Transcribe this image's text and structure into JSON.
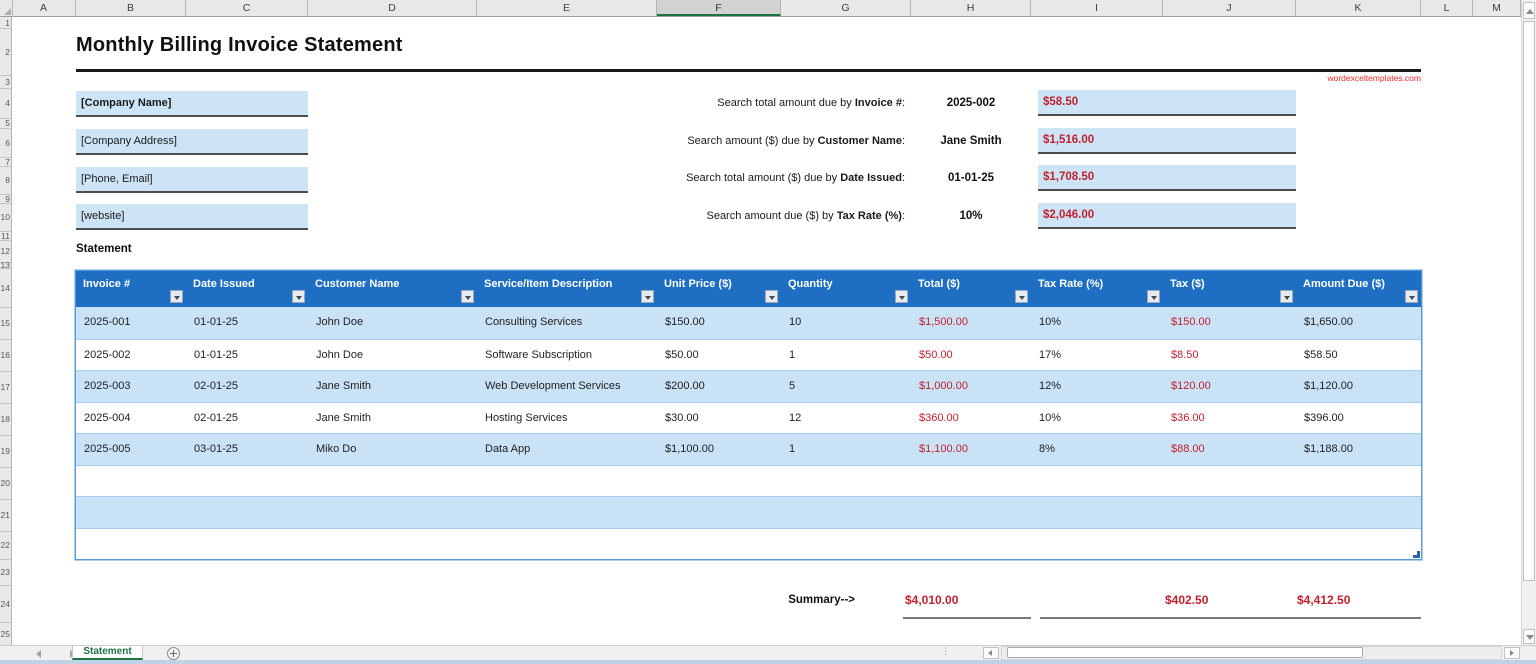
{
  "spreadsheet": {
    "column_headers": [
      "A",
      "B",
      "C",
      "D",
      "E",
      "F",
      "G",
      "H",
      "I",
      "J",
      "K",
      "L",
      "M"
    ],
    "selected_column": "F",
    "row_numbers": [
      "1",
      "2",
      "3",
      "4",
      "5",
      "6",
      "7",
      "8",
      "9",
      "10",
      "11",
      "12",
      "13",
      "14",
      "15",
      "16",
      "17",
      "18",
      "19",
      "20",
      "21",
      "22",
      "23",
      "24",
      "25"
    ]
  },
  "document": {
    "title": "Monthly Billing Invoice Statement",
    "watermark": "wordexceltemplates.com",
    "company_fields": {
      "name": "[Company Name]",
      "address": "[Company Address]",
      "phone_email": "[Phone, Email]",
      "website": "[website]"
    },
    "search": [
      {
        "prefix": "Search total amount due by ",
        "key": "Invoice #",
        "suffix": ":",
        "value": "2025-002",
        "result": "$58.50"
      },
      {
        "prefix": "Search amount ($) due by ",
        "key": "Customer Name",
        "suffix": ":",
        "value": "Jane Smith",
        "result": "$1,516.00"
      },
      {
        "prefix": "Search total amount ($) due by ",
        "key": "Date Issued",
        "suffix": ":",
        "value": "01-01-25",
        "result": "$1,708.50"
      },
      {
        "prefix": "Search amount due ($) by ",
        "key": "Tax Rate (%)",
        "suffix": ":",
        "value": "10%",
        "result": "$2,046.00"
      }
    ],
    "section_label": "Statement",
    "table": {
      "headers": [
        "Invoice #",
        "Date Issued",
        "Customer Name",
        "Service/Item Description",
        "Unit Price ($)",
        "Quantity",
        "Total ($)",
        "Tax Rate (%)",
        "Tax ($)",
        "Amount Due ($)"
      ],
      "rows": [
        [
          "2025-001",
          "01-01-25",
          "John Doe",
          "Consulting Services",
          "$150.00",
          "10",
          "$1,500.00",
          "10%",
          "$150.00",
          "$1,650.00"
        ],
        [
          "2025-002",
          "01-01-25",
          "John Doe",
          "Software Subscription",
          "$50.00",
          "1",
          "$50.00",
          "17%",
          "$8.50",
          "$58.50"
        ],
        [
          "2025-003",
          "02-01-25",
          "Jane Smith",
          "Web Development Services",
          "$200.00",
          "5",
          "$1,000.00",
          "12%",
          "$120.00",
          "$1,120.00"
        ],
        [
          "2025-004",
          "02-01-25",
          "Jane Smith",
          "Hosting Services",
          "$30.00",
          "12",
          "$360.00",
          "10%",
          "$36.00",
          "$396.00"
        ],
        [
          "2025-005",
          "03-01-25",
          "Miko Do",
          "Data App",
          "$1,100.00",
          "1",
          "$1,100.00",
          "8%",
          "$88.00",
          "$1,188.00"
        ]
      ]
    },
    "summary": {
      "label": "Summary-->",
      "total": "$4,010.00",
      "tax": "$402.50",
      "amount_due": "$4,412.50"
    }
  },
  "tabs": {
    "active": "Statement"
  },
  "colors": {
    "header_blue": "#1e6fc4",
    "band_blue": "#c9e2f6",
    "fill_blue": "#cde4f7",
    "value_red": "#c0212e",
    "tab_green": "#1e7145",
    "table_border": "#5b9bd5"
  }
}
